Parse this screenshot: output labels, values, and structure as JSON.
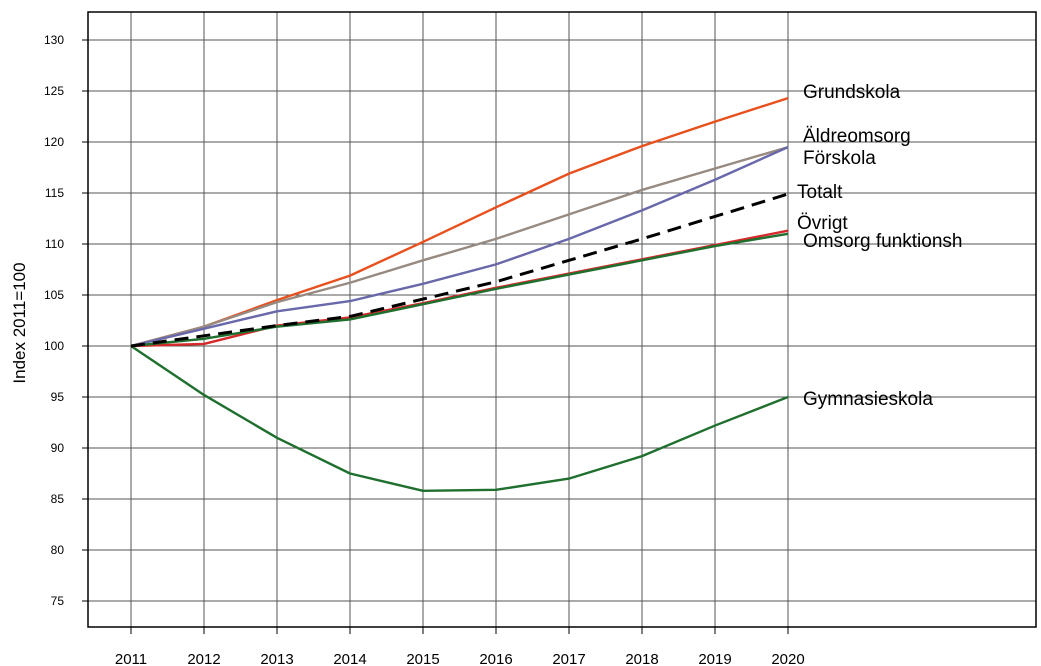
{
  "chart_data": {
    "type": "line",
    "title": "",
    "xlabel": "",
    "ylabel": "Index 2011=100",
    "x": [
      2011,
      2012,
      2013,
      2014,
      2015,
      2016,
      2017,
      2018,
      2019,
      2020
    ],
    "ylim": [
      72,
      133
    ],
    "yticks": [
      75,
      80,
      85,
      90,
      95,
      100,
      105,
      110,
      115,
      120,
      125,
      130
    ],
    "grid": true,
    "legend": "direct labels at line ends",
    "series": [
      {
        "name": "Grundskola",
        "color": "#e8501e",
        "dashed": false,
        "values": [
          100,
          101.9,
          104.5,
          106.9,
          110.2,
          113.6,
          116.9,
          119.6,
          122.0,
          124.3
        ]
      },
      {
        "name": "Äldreomsorg",
        "color": "#978a80",
        "dashed": false,
        "values": [
          100,
          101.9,
          104.3,
          106.2,
          108.4,
          110.5,
          112.9,
          115.3,
          117.4,
          119.5
        ]
      },
      {
        "name": "Förskola",
        "color": "#6868aa",
        "dashed": false,
        "values": [
          100,
          101.7,
          103.4,
          104.4,
          106.1,
          108.0,
          110.5,
          113.3,
          116.3,
          119.5
        ]
      },
      {
        "name": "Totalt",
        "color": "#000000",
        "dashed": true,
        "values": [
          100,
          101.0,
          102.0,
          102.9,
          104.6,
          106.3,
          108.4,
          110.5,
          112.7,
          114.9
        ]
      },
      {
        "name": "Övrigt",
        "color": "#d42a2a",
        "dashed": false,
        "values": [
          100,
          100.2,
          102.0,
          102.8,
          104.2,
          105.7,
          107.1,
          108.5,
          109.9,
          111.3
        ]
      },
      {
        "name": "Omsorg funktionsh",
        "color": "#1f6f2e",
        "dashed": false,
        "values": [
          100,
          100.7,
          101.9,
          102.6,
          104.1,
          105.6,
          107.0,
          108.4,
          109.8,
          111.0
        ]
      },
      {
        "name": "Gymnasieskola",
        "color": "#1f6f2e",
        "dashed": false,
        "values": [
          100,
          95.2,
          91.0,
          87.5,
          85.8,
          85.9,
          87.0,
          89.2,
          92.2,
          95.0
        ]
      }
    ]
  }
}
